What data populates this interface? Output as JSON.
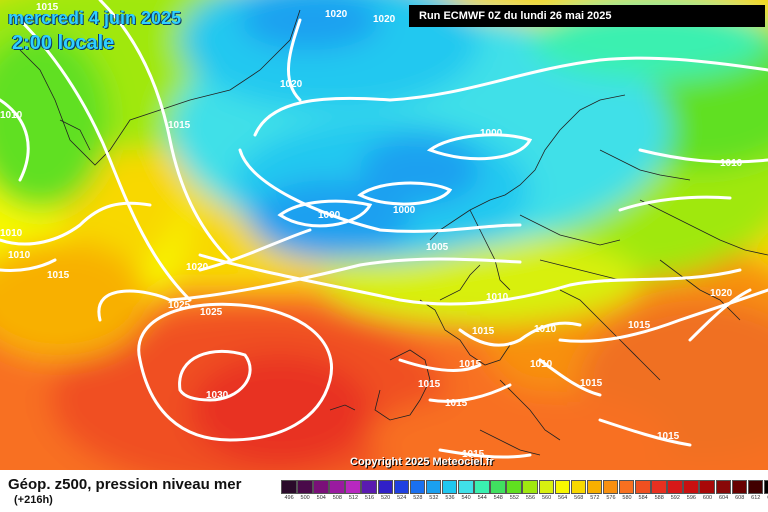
{
  "header": {
    "date": "mercredi 4 juin 2025",
    "time": "2:00 locale",
    "run": "Run ECMWF 0Z du lundi 26 mai 2025"
  },
  "footer": {
    "title": "Géop. z500, pression niveau mer",
    "lead": "(+216h)",
    "copyright": "Copyright 2025 Meteociel.fr"
  },
  "legend": {
    "labels": [
      "496",
      "500",
      "504",
      "508",
      "512",
      "516",
      "520",
      "524",
      "528",
      "532",
      "536",
      "540",
      "544",
      "548",
      "552",
      "556",
      "560",
      "564",
      "568",
      "572",
      "576",
      "580",
      "584",
      "588",
      "592",
      "596",
      "600",
      "604",
      "608",
      "612",
      "616"
    ],
    "colors": [
      "#2a0a2a",
      "#4a0a4a",
      "#7a1078",
      "#9a1aa0",
      "#b828c0",
      "#5a1ab0",
      "#3020c8",
      "#2040e0",
      "#1a70f0",
      "#1aa0f0",
      "#20c8f0",
      "#40e0e8",
      "#3af0b0",
      "#40e060",
      "#60e020",
      "#a0e810",
      "#d8f010",
      "#f8f800",
      "#f8d800",
      "#f8b000",
      "#f89010",
      "#f87020",
      "#f05020",
      "#e83020",
      "#d81818",
      "#c81010",
      "#a80808",
      "#880808",
      "#680000",
      "#400000",
      "#000000"
    ]
  },
  "isobars": [
    {
      "label": "1015"
    },
    {
      "label": "1020"
    },
    {
      "label": "1020"
    },
    {
      "label": "1020"
    },
    {
      "label": "1015"
    },
    {
      "label": "1000"
    },
    {
      "label": "1010"
    },
    {
      "label": "1000"
    },
    {
      "label": "1000"
    },
    {
      "label": "1005"
    },
    {
      "label": "1010"
    },
    {
      "label": "1010"
    },
    {
      "label": "1015"
    },
    {
      "label": "1020"
    },
    {
      "label": "1025"
    },
    {
      "label": "1025"
    },
    {
      "label": "1010"
    },
    {
      "label": "1020"
    },
    {
      "label": "1015"
    },
    {
      "label": "1010"
    },
    {
      "label": "1015"
    },
    {
      "label": "1010"
    },
    {
      "label": "1015"
    },
    {
      "label": "1015"
    },
    {
      "label": "1015"
    },
    {
      "label": "1030"
    },
    {
      "label": "1015"
    },
    {
      "label": "1015"
    },
    {
      "label": "1015"
    },
    {
      "label": "1010"
    }
  ]
}
